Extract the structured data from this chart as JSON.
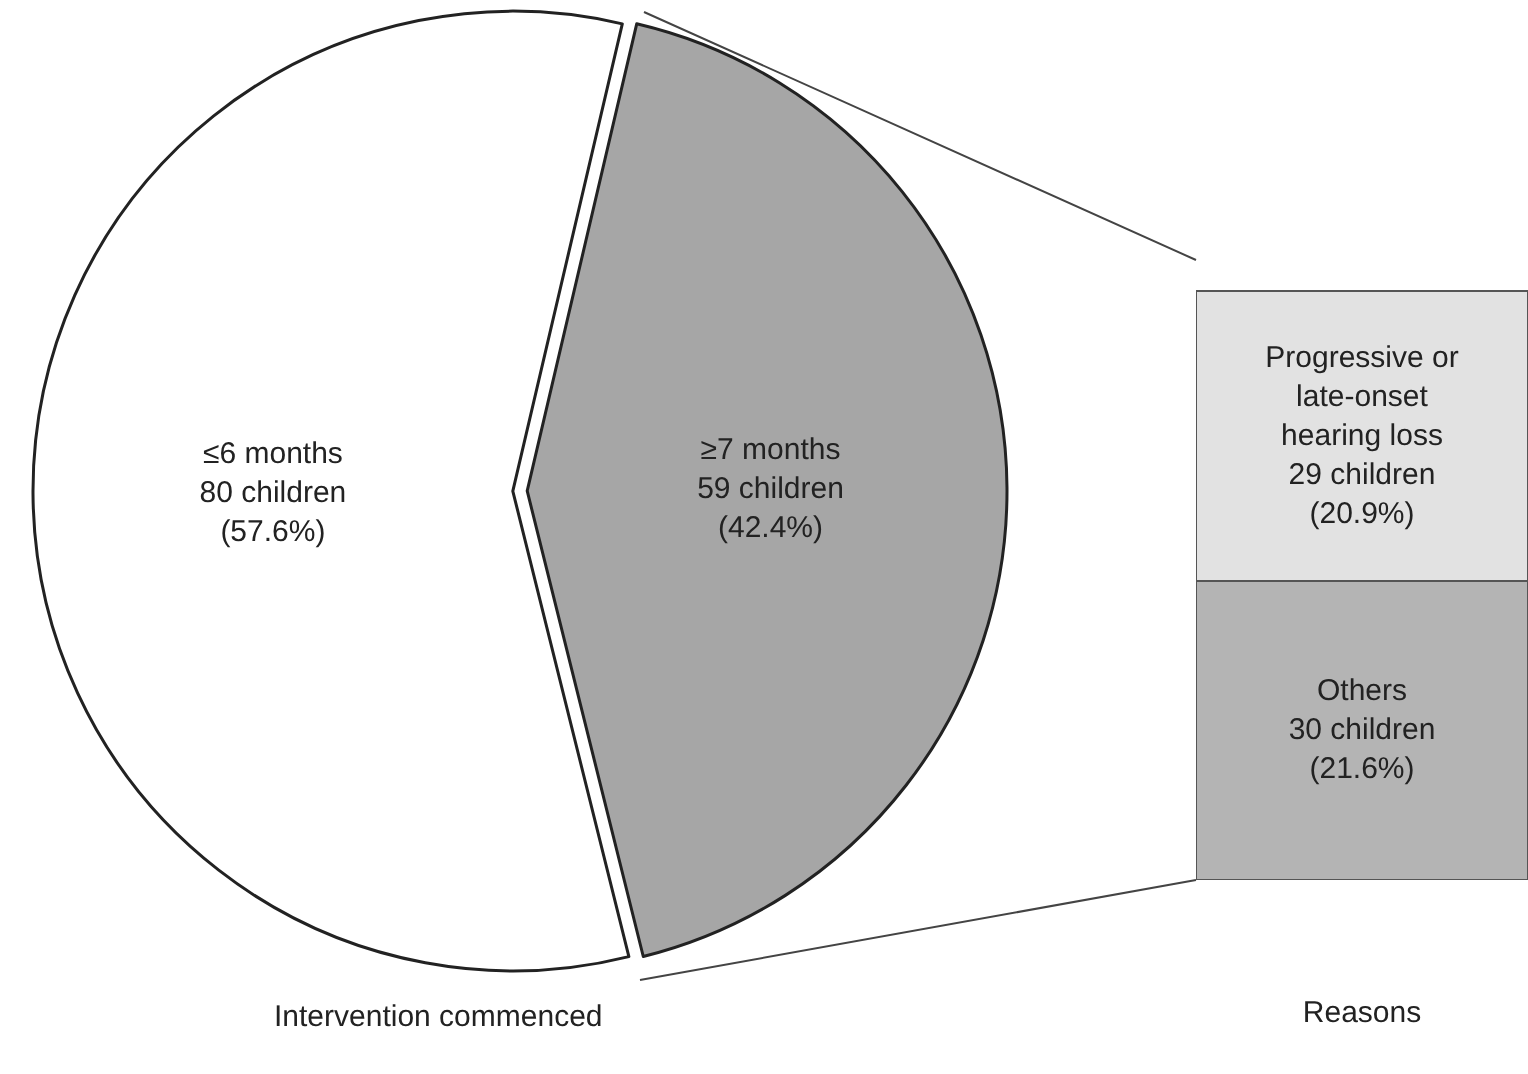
{
  "chart_data": [
    {
      "type": "pie",
      "xlabel": "Intervention commenced",
      "categories": [
        "≤6 months",
        "≥7 months"
      ],
      "values": [
        80,
        59
      ],
      "colors": [
        "#ffffff",
        "#a6a6a6"
      ],
      "value_labels": [
        "80 children (57.6%)",
        "59 children (42.4%)"
      ],
      "legend": false
    },
    {
      "type": "bar",
      "stacked": true,
      "xlabel": "Reasons",
      "categories": [
        null
      ],
      "legend": false,
      "series": [
        {
          "name": "Others",
          "color": "#b4b4b4",
          "values": [
            30
          ],
          "value_labels": [
            "30 children (21.6%)"
          ]
        },
        {
          "name": "Progressive or late-onset hearing loss",
          "color": "#e2e2e2",
          "values": [
            29
          ],
          "value_labels": [
            "29 children (20.9%)"
          ]
        }
      ]
    }
  ]
}
